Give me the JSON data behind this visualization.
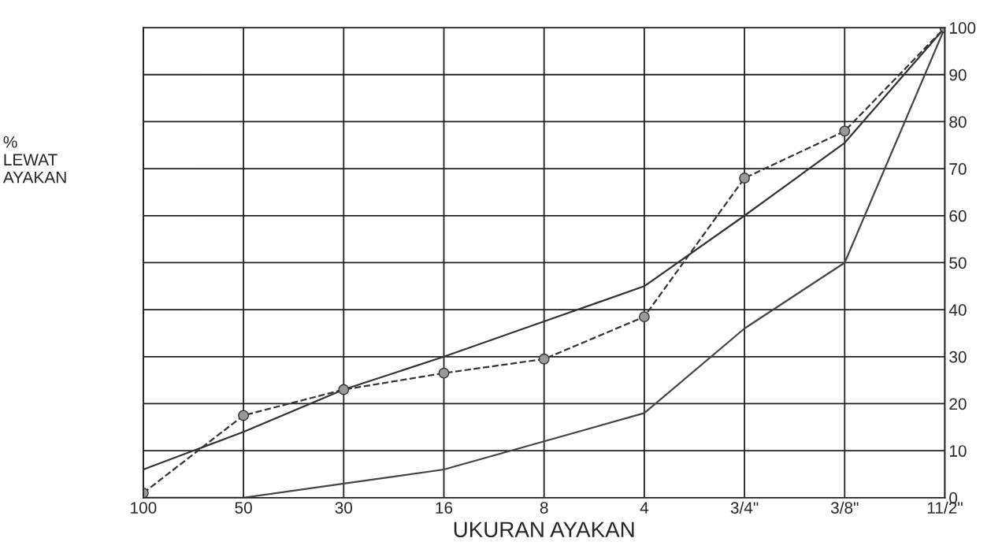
{
  "chart_data": {
    "type": "line",
    "xlabel": "UKURAN AYAKAN",
    "ylabel": "%\nLEWAT\nAYAKAN",
    "categories": [
      "100",
      "50",
      "30",
      "16",
      "8",
      "4",
      "3/4\"",
      "3/8\"",
      "11/2\""
    ],
    "series": [
      {
        "color": "#333333",
        "values": [
          6,
          14,
          23,
          30,
          37.5,
          45,
          60,
          75.5,
          100
        ],
        "line_style": "solid",
        "marker": "none"
      },
      {
        "color": "#444444",
        "values": [
          0,
          0,
          3,
          6,
          12,
          18,
          36,
          50,
          100
        ],
        "line_style": "solid",
        "marker": "none"
      },
      {
        "color": "#333333",
        "values": [
          1,
          17.5,
          23,
          26.5,
          29.5,
          38.5,
          68,
          78,
          100
        ],
        "line_style": "dashed",
        "marker": "circle"
      }
    ],
    "ylim": [
      0,
      100
    ],
    "yticks": [
      0,
      10,
      20,
      30,
      40,
      50,
      60,
      70,
      80,
      90,
      100
    ],
    "grid": true,
    "legend": false
  }
}
